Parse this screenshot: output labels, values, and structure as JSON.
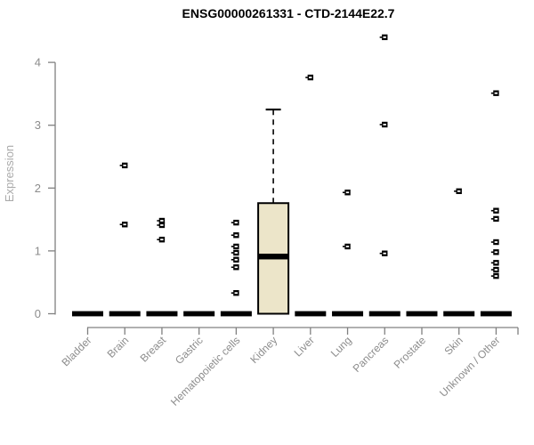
{
  "chart_data": {
    "type": "boxplot",
    "title": "ENSG00000261331 - CTD-2144E22.7",
    "ylabel": "Expression",
    "xlabel": "",
    "ylim": [
      0,
      4
    ],
    "yticks": [
      0,
      1,
      2,
      3,
      4
    ],
    "grid": false,
    "legend": false,
    "categories": [
      "Bladder",
      "Brain",
      "Breast",
      "Gastric",
      "Hematopoietic cells",
      "Kidney",
      "Liver",
      "Lung",
      "Pancreas",
      "Prostate",
      "Skin",
      "Unknown / Other"
    ],
    "boxes": [
      {
        "category": "Bladder",
        "q1": 0,
        "median": 0,
        "q3": 0,
        "whisker_low": 0,
        "whisker_high": 0,
        "outliers": []
      },
      {
        "category": "Brain",
        "q1": 0,
        "median": 0,
        "q3": 0,
        "whisker_low": 0,
        "whisker_high": 0,
        "outliers": [
          2.36,
          1.42
        ]
      },
      {
        "category": "Breast",
        "q1": 0,
        "median": 0,
        "q3": 0,
        "whisker_low": 0,
        "whisker_high": 0,
        "outliers": [
          1.48,
          1.41,
          1.18
        ]
      },
      {
        "category": "Gastric",
        "q1": 0,
        "median": 0,
        "q3": 0,
        "whisker_low": 0,
        "whisker_high": 0,
        "outliers": []
      },
      {
        "category": "Hematopoietic cells",
        "q1": 0,
        "median": 0,
        "q3": 0,
        "whisker_low": 0,
        "whisker_high": 0,
        "outliers": [
          1.45,
          1.25,
          1.07,
          0.97,
          0.86,
          0.74,
          0.33
        ]
      },
      {
        "category": "Kidney",
        "q1": 0,
        "median": 0.91,
        "q3": 1.76,
        "whisker_low": 0,
        "whisker_high": 3.25,
        "outliers": []
      },
      {
        "category": "Liver",
        "q1": 0,
        "median": 0,
        "q3": 0,
        "whisker_low": 0,
        "whisker_high": 0,
        "outliers": [
          3.76
        ]
      },
      {
        "category": "Lung",
        "q1": 0,
        "median": 0,
        "q3": 0,
        "whisker_low": 0,
        "whisker_high": 0,
        "outliers": [
          1.93,
          1.07
        ]
      },
      {
        "category": "Pancreas",
        "q1": 0,
        "median": 0,
        "q3": 0,
        "whisker_low": 0,
        "whisker_high": 0,
        "outliers": [
          4.4,
          3.01,
          0.96
        ]
      },
      {
        "category": "Prostate",
        "q1": 0,
        "median": 0,
        "q3": 0,
        "whisker_low": 0,
        "whisker_high": 0,
        "outliers": []
      },
      {
        "category": "Skin",
        "q1": 0,
        "median": 0,
        "q3": 0,
        "whisker_low": 0,
        "whisker_high": 0,
        "outliers": [
          1.95
        ]
      },
      {
        "category": "Unknown / Other",
        "q1": 0,
        "median": 0,
        "q3": 0,
        "whisker_low": 0,
        "whisker_high": 0,
        "outliers": [
          3.51,
          1.64,
          1.51,
          1.14,
          0.98,
          0.81,
          0.7,
          0.6
        ]
      }
    ],
    "colors": {
      "box_fill": "#ece5c9",
      "box_stroke": "#000000",
      "median": "#000000",
      "outlier": "#000000",
      "axis": "#808080",
      "tick_label": "#8c8c8c",
      "axis_title": "#aaaaaa",
      "title": "#000000",
      "background": "#ffffff"
    }
  }
}
